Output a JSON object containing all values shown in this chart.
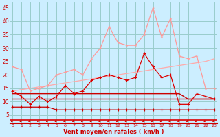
{
  "x": [
    0,
    1,
    2,
    3,
    4,
    5,
    6,
    7,
    8,
    9,
    10,
    11,
    12,
    13,
    14,
    15,
    16,
    17,
    18,
    19,
    20,
    21,
    22,
    23
  ],
  "background_color": "#cceeff",
  "grid_color": "#99cccc",
  "xlabel": "Vent moyen/en rafales ( km/h )",
  "ylabel_ticks": [
    5,
    10,
    15,
    20,
    25,
    30,
    35,
    40,
    45
  ],
  "ylim": [
    2,
    47
  ],
  "xlim": [
    -0.3,
    23.3
  ],
  "line_rafales": [
    23,
    22,
    14,
    15,
    16,
    20,
    21,
    22,
    20,
    26,
    30,
    38,
    32,
    31,
    31,
    35,
    45,
    34,
    41,
    27,
    26,
    27,
    15,
    15
  ],
  "line_moyen": [
    14,
    12,
    9,
    12,
    10,
    12,
    16,
    13,
    14,
    18,
    19,
    20,
    19,
    18,
    19,
    28,
    23,
    19,
    20,
    9,
    9,
    13,
    12,
    11
  ],
  "line_min": [
    8,
    8,
    8,
    8,
    8,
    7,
    7,
    7,
    7,
    7,
    7,
    7,
    7,
    7,
    7,
    7,
    7,
    7,
    7,
    7,
    7,
    7,
    7,
    7
  ],
  "line_flat1": [
    13,
    13,
    13,
    13,
    13,
    13,
    13,
    13,
    13,
    13,
    13,
    13,
    13,
    13,
    13,
    13,
    13,
    13,
    13,
    13,
    11,
    11,
    11,
    11
  ],
  "line_flat2": [
    11,
    11,
    11,
    11,
    11,
    11,
    11,
    11,
    11,
    11,
    11,
    11,
    11,
    11,
    11,
    11,
    11,
    11,
    11,
    11,
    11,
    11,
    11,
    11
  ],
  "line_trend": [
    14,
    14.5,
    15,
    15.5,
    16,
    16.5,
    17,
    17.5,
    18,
    18.5,
    19,
    19.5,
    20,
    20.5,
    21,
    21.5,
    22,
    22.5,
    23,
    23.5,
    24,
    24.5,
    25,
    26
  ],
  "color_rafales": "#ff9999",
  "color_moyen": "#dd0000",
  "color_flat": "#cc0000",
  "color_trend": "#ffaaaa",
  "color_min": "#cc0000",
  "color_arrow": "#cc0000",
  "color_redline": "#dd0000"
}
